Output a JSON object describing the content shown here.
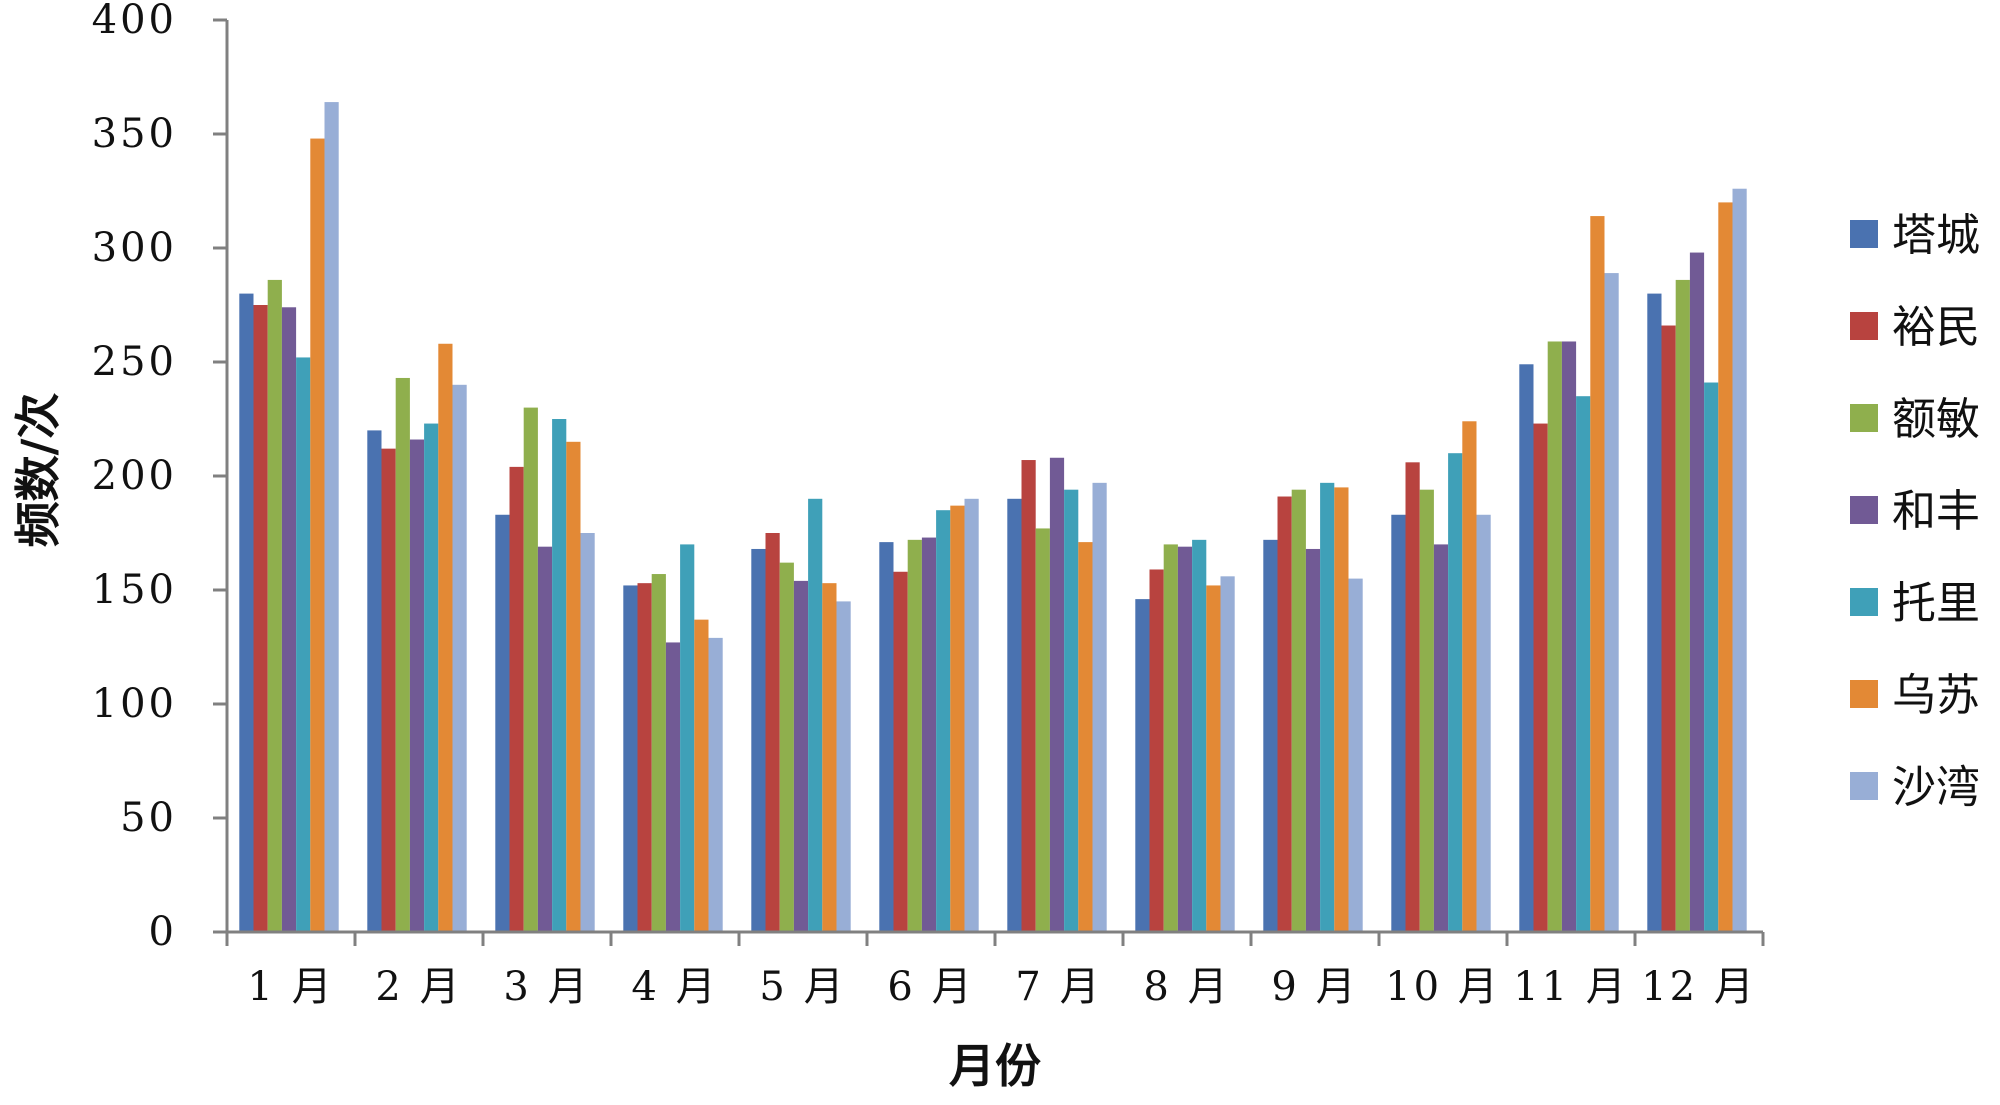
{
  "chart_data": {
    "type": "bar",
    "xlabel": "月份",
    "ylabel": "频数/次",
    "ylim": [
      0,
      400
    ],
    "yticks": [
      "0",
      "50",
      "100",
      "150",
      "200",
      "250",
      "300",
      "350",
      "400"
    ],
    "categories": [
      "1 月",
      "2 月",
      "3 月",
      "4 月",
      "5 月",
      "6 月",
      "7 月",
      "8 月",
      "9 月",
      "10 月",
      "11 月",
      "12 月"
    ],
    "legend_position": "right",
    "grid": false,
    "series": [
      {
        "name": "塔城",
        "color": "#4a72b0",
        "values": [
          280,
          220,
          183,
          152,
          168,
          171,
          190,
          146,
          172,
          183,
          249,
          280
        ]
      },
      {
        "name": "裕民",
        "color": "#b8433f",
        "values": [
          275,
          212,
          204,
          153,
          175,
          158,
          207,
          159,
          191,
          206,
          223,
          266
        ]
      },
      {
        "name": "额敏",
        "color": "#8faf4d",
        "values": [
          286,
          243,
          230,
          157,
          162,
          172,
          177,
          170,
          194,
          194,
          259,
          286
        ]
      },
      {
        "name": "和丰",
        "color": "#715a95",
        "values": [
          274,
          216,
          169,
          127,
          154,
          173,
          208,
          169,
          168,
          170,
          259,
          298
        ]
      },
      {
        "name": "托里",
        "color": "#3fa0b8",
        "values": [
          252,
          223,
          225,
          170,
          190,
          185,
          194,
          172,
          197,
          210,
          235,
          241
        ]
      },
      {
        "name": "乌苏",
        "color": "#e38935",
        "values": [
          348,
          258,
          215,
          137,
          153,
          187,
          171,
          152,
          195,
          224,
          314,
          320
        ]
      },
      {
        "name": "沙湾",
        "color": "#98aed6",
        "values": [
          364,
          240,
          175,
          129,
          145,
          190,
          197,
          156,
          155,
          183,
          289,
          326
        ]
      }
    ]
  }
}
